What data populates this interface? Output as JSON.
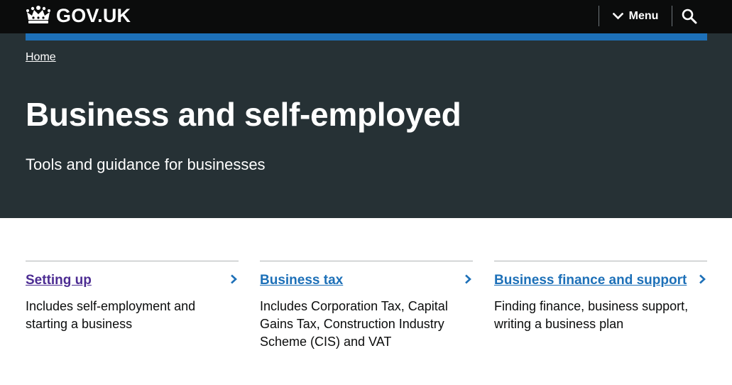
{
  "header": {
    "logo_text": "GOV.UK",
    "menu_label": "Menu",
    "search_icon": "search-icon",
    "menu_icon": "chevron-down-icon",
    "crown_icon": "crown-icon"
  },
  "colors": {
    "header_bg": "#0b0c0c",
    "hero_bg": "#263135",
    "accent": "#1d70b8",
    "link": "#1d70b8",
    "visited_link": "#4c2c92"
  },
  "breadcrumb": {
    "home": "Home"
  },
  "hero": {
    "title": "Business and self-employed",
    "description": "Tools and guidance for businesses"
  },
  "cards": [
    {
      "title": "Setting up",
      "description": "Includes self-employment and starting a business",
      "visited": true
    },
    {
      "title": "Business tax",
      "description": "Includes Corporation Tax, Capital Gains Tax, Construction Industry Scheme (CIS) and VAT",
      "visited": false
    },
    {
      "title": "Business finance and support",
      "description": "Finding finance, business support, writing a business plan",
      "visited": false
    }
  ]
}
